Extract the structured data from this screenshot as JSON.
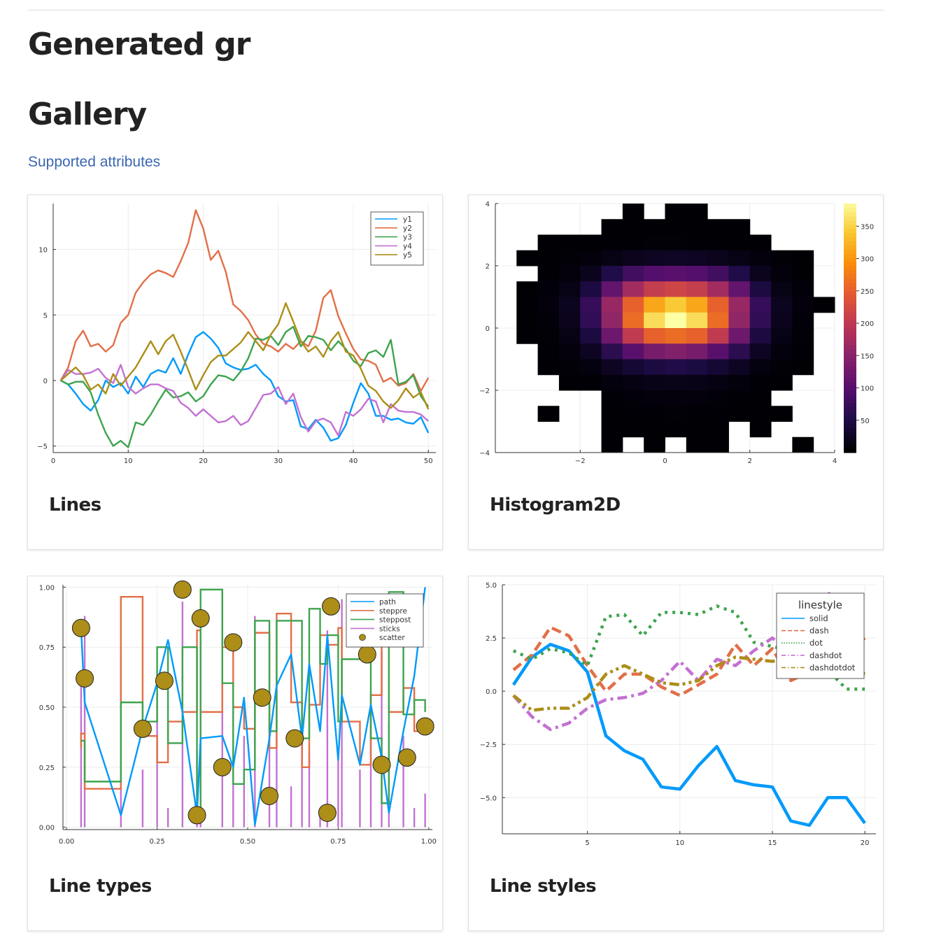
{
  "page": {
    "title": "Generated gr",
    "section_title": "Gallery",
    "link_label": "Supported attributes"
  },
  "cards": [
    {
      "title": "Lines"
    },
    {
      "title": "Histogram2D"
    },
    {
      "title": "Line types"
    },
    {
      "title": "Line styles"
    }
  ],
  "colors": {
    "link": "#3b67b0",
    "series": [
      "#009AFA",
      "#E36F47",
      "#3EA44E",
      "#C371D2",
      "#AC8E18"
    ]
  },
  "chart_data": [
    {
      "type": "line",
      "title": "",
      "xlim": [
        0,
        51
      ],
      "ylim": [
        -5.5,
        13.5
      ],
      "xticks": [
        0,
        10,
        20,
        30,
        40,
        50
      ],
      "yticks": [
        -5,
        0,
        5,
        10
      ],
      "xlabel": "",
      "ylabel": "",
      "grid": true,
      "legend": "top-right",
      "x": [
        1,
        2,
        3,
        4,
        5,
        6,
        7,
        8,
        9,
        10,
        11,
        12,
        13,
        14,
        15,
        16,
        17,
        18,
        19,
        20,
        21,
        22,
        23,
        24,
        25,
        26,
        27,
        28,
        29,
        30,
        31,
        32,
        33,
        34,
        35,
        36,
        37,
        38,
        39,
        40,
        41,
        42,
        43,
        44,
        45,
        46,
        47,
        48,
        49,
        50
      ],
      "series": [
        {
          "name": "y1",
          "values": [
            0,
            -0.3,
            -1,
            -1.8,
            -2.3,
            -1.5,
            0,
            -0.5,
            -0.2,
            -1.0,
            0.3,
            -0.5,
            0.5,
            0.8,
            0.6,
            1.7,
            0.5,
            2.0,
            3.3,
            3.7,
            3.2,
            2.5,
            1.3,
            1.0,
            0.8,
            0.9,
            1.2,
            0.5,
            0,
            -1.2,
            -1.6,
            -1.5,
            -3.5,
            -3.7,
            -3.0,
            -3.6,
            -4.6,
            -4.4,
            -3.4,
            -1.7,
            -0.2,
            -1.0,
            -2.7,
            -2.7,
            -3.0,
            -2.9,
            -3.2,
            -3.3,
            -2.8,
            -4.0
          ]
        },
        {
          "name": "y2",
          "values": [
            0,
            1,
            3,
            3.8,
            2.6,
            2.8,
            2.2,
            2.7,
            4.4,
            5.0,
            6.7,
            7.5,
            8.1,
            8.4,
            8.2,
            7.9,
            9.1,
            10.5,
            13.0,
            11.6,
            9.2,
            9.9,
            8.3,
            5.8,
            5.3,
            4.6,
            3.5,
            2.8,
            2.6,
            2.2,
            2.8,
            2.4,
            3.0,
            2.6,
            3.8,
            6.3,
            6.9,
            4.9,
            3.6,
            2.4,
            1.6,
            1.5,
            1.2,
            -0.1,
            0.2,
            -0.4,
            -0.2,
            0.5,
            -0.8,
            0.2
          ]
        },
        {
          "name": "y3",
          "values": [
            0,
            -0.3,
            -0.1,
            -0.1,
            -0.9,
            -2.6,
            -4.0,
            -5.0,
            -4.6,
            -5.1,
            -3.2,
            -3.4,
            -2.6,
            -1.6,
            -0.7,
            -1.3,
            -1.2,
            -0.9,
            -1.6,
            -1.2,
            -0.3,
            0.4,
            0.3,
            0,
            0.7,
            1.7,
            3.2,
            3.1,
            3.4,
            2.7,
            3.7,
            4.1,
            2.6,
            3.4,
            3.3,
            3.1,
            2.3,
            3.0,
            2.4,
            1.5,
            1.1,
            2.1,
            2.3,
            1.8,
            3.1,
            -0.3,
            -0.1,
            0.4,
            -1.2,
            -2.0
          ]
        },
        {
          "name": "y4",
          "values": [
            0,
            0.8,
            0.5,
            0.5,
            0.6,
            0.9,
            0.2,
            -0.2,
            1.2,
            -0.5,
            -1.0,
            -0.6,
            -0.3,
            -0.3,
            -0.6,
            -0.8,
            -1.7,
            -2.1,
            -2.7,
            -2.2,
            -2.7,
            -3.2,
            -3.1,
            -2.7,
            -3.4,
            -3.1,
            -2.1,
            -1.1,
            -1.0,
            -0.5,
            -1.8,
            -1.0,
            -2.8,
            -3.9,
            -3.1,
            -2.9,
            -3.2,
            -4.2,
            -2.4,
            -2.7,
            -2.2,
            -1.4,
            -1.6,
            -3.2,
            -1.8,
            -2.3,
            -2.4,
            -2.4,
            -2.6,
            -3.1
          ]
        },
        {
          "name": "y5",
          "values": [
            0,
            0.5,
            1.0,
            0.4,
            -0.7,
            -0.3,
            -1.0,
            0.5,
            -0.4,
            0.3,
            1.0,
            2.0,
            3.0,
            2.0,
            3.0,
            3.5,
            2.2,
            0.8,
            -0.7,
            0.4,
            1.4,
            1.9,
            1.9,
            2.4,
            2.9,
            3.7,
            3.0,
            2.3,
            3.5,
            4.3,
            5.9,
            4.5,
            3.0,
            2.2,
            2.6,
            1.8,
            3.0,
            3.7,
            2.2,
            1.9,
            0.9,
            -0.4,
            -0.8,
            -1.6,
            -2.1,
            -1.5,
            -0.6,
            -1.3,
            -0.9,
            -2.2
          ]
        }
      ]
    },
    {
      "type": "heatmap",
      "title": "",
      "xlim": [
        -4,
        4
      ],
      "ylim": [
        -4,
        4
      ],
      "xticks": [
        -2,
        0,
        2,
        4
      ],
      "yticks": [
        -4,
        -2,
        0,
        2,
        4
      ],
      "xlabel": "",
      "ylabel": "",
      "colorbar_ticks": [
        50,
        100,
        150,
        200,
        250,
        300,
        350
      ],
      "colorbar_range": [
        0,
        385
      ],
      "colormap": "inferno",
      "bin_x_edges": [
        -3.5,
        -3.0,
        -2.5,
        -2.0,
        -1.5,
        -1.0,
        -0.5,
        0,
        0.5,
        1.0,
        1.5,
        2.0,
        2.5,
        3.0,
        3.5,
        4.0
      ],
      "bin_y_edges": [
        4.0,
        3.5,
        3.0,
        2.5,
        2.0,
        1.5,
        1.0,
        0.5,
        0,
        -0.5,
        -1.0,
        -1.5,
        -2.0,
        -2.5,
        -3.0,
        -3.5,
        -4.0
      ],
      "counts": [
        [
          0,
          0,
          0,
          0,
          0,
          1,
          0,
          1,
          1,
          0,
          0,
          0,
          0,
          0,
          0
        ],
        [
          0,
          0,
          0,
          0,
          1,
          1,
          1,
          1,
          1,
          1,
          1,
          0,
          0,
          0,
          0
        ],
        [
          0,
          1,
          1,
          1,
          2,
          2,
          3,
          3,
          2,
          2,
          1,
          1,
          0,
          0,
          0
        ],
        [
          1,
          1,
          3,
          6,
          12,
          18,
          22,
          24,
          22,
          18,
          12,
          6,
          3,
          1,
          0
        ],
        [
          0,
          1,
          6,
          18,
          50,
          80,
          95,
          100,
          95,
          80,
          50,
          18,
          6,
          1,
          0
        ],
        [
          1,
          4,
          12,
          45,
          110,
          170,
          205,
          215,
          205,
          170,
          110,
          45,
          12,
          4,
          0
        ],
        [
          1,
          6,
          20,
          70,
          160,
          250,
          310,
          340,
          310,
          250,
          160,
          70,
          20,
          6,
          1
        ],
        [
          1,
          4,
          18,
          65,
          155,
          260,
          355,
          385,
          355,
          260,
          155,
          65,
          18,
          4,
          0
        ],
        [
          1,
          3,
          12,
          45,
          120,
          200,
          250,
          260,
          250,
          200,
          120,
          45,
          12,
          3,
          0
        ],
        [
          0,
          2,
          6,
          22,
          60,
          100,
          130,
          140,
          130,
          100,
          60,
          22,
          6,
          2,
          0
        ],
        [
          0,
          1,
          3,
          8,
          22,
          35,
          45,
          50,
          45,
          35,
          22,
          8,
          3,
          1,
          0
        ],
        [
          0,
          0,
          1,
          2,
          5,
          10,
          14,
          15,
          14,
          10,
          5,
          2,
          1,
          0,
          0
        ],
        [
          0,
          0,
          0,
          0,
          2,
          4,
          6,
          6,
          6,
          4,
          2,
          1,
          0,
          0,
          0
        ],
        [
          0,
          1,
          0,
          0,
          1,
          2,
          2,
          3,
          2,
          2,
          1,
          1,
          1,
          0,
          0
        ],
        [
          0,
          0,
          0,
          0,
          1,
          1,
          1,
          1,
          1,
          1,
          0,
          1,
          0,
          0,
          0
        ],
        [
          0,
          0,
          0,
          0,
          1,
          0,
          1,
          0,
          1,
          1,
          0,
          0,
          0,
          1,
          0
        ]
      ]
    },
    {
      "type": "line",
      "title": "",
      "xlim": [
        -0.01,
        1.01
      ],
      "ylim": [
        -0.01,
        1.01
      ],
      "xticks": [
        "0.00",
        "0.25",
        "0.50",
        "0.75",
        "1.00"
      ],
      "yticks": [
        "0.00",
        "0.25",
        "0.50",
        "0.75",
        "1.00"
      ],
      "xlabel": "",
      "ylabel": "",
      "grid": true,
      "legend": "top-right",
      "series_names": [
        "path",
        "steppre",
        "steppost",
        "sticks",
        "scatter"
      ],
      "x": [
        0.04,
        0.05,
        0.15,
        0.21,
        0.25,
        0.28,
        0.32,
        0.36,
        0.37,
        0.43,
        0.46,
        0.49,
        0.52,
        0.56,
        0.58,
        0.62,
        0.65,
        0.67,
        0.7,
        0.72,
        0.75,
        0.76,
        0.81,
        0.84,
        0.87,
        0.89,
        0.93,
        0.96,
        0.99
      ],
      "series": [
        {
          "name": "path",
          "values": [
            0.83,
            0.52,
            0.05,
            0.41,
            0.6,
            0.78,
            0.48,
            0.05,
            0.37,
            0.38,
            0.25,
            0.54,
            0.01,
            0.37,
            0.59,
            0.72,
            0.37,
            0.68,
            0.4,
            0.8,
            0.28,
            0.55,
            0.26,
            0.51,
            0.29,
            0.06,
            0.4,
            0.63,
            1.0
          ]
        },
        {
          "name": "steppre",
          "values": [
            0.33,
            0.39,
            0.16,
            0.96,
            0.38,
            0.27,
            0.44,
            0.48,
            0.82,
            0.48,
            0.75,
            0.5,
            0.41,
            0.81,
            0.33,
            0.89,
            0.52,
            0.25,
            0.51,
            0.8,
            0.76,
            0.83,
            0.44,
            0.26,
            0.55,
            0.85,
            0.48,
            0.58,
            0.4
          ]
        },
        {
          "name": "steppost",
          "values": [
            0.36,
            0.19,
            0.52,
            0.44,
            0.75,
            0.35,
            0.75,
            0.04,
            0.99,
            0.6,
            0.18,
            0.24,
            0.86,
            0.4,
            0.86,
            0.86,
            0.37,
            0.91,
            0.68,
            0.8,
            0.44,
            0.7,
            0.72,
            0.37,
            0.1,
            0.98,
            0.47,
            0.53,
            0.48
          ]
        },
        {
          "name": "sticks",
          "values": [
            0.6,
            0.88,
            0.72,
            0.24,
            0.56,
            0.08,
            0.94,
            0.32,
            0.77,
            0.97,
            0.48,
            0.38,
            0.88,
            0.47,
            0.6,
            0.17,
            0.52,
            0.31,
            0.07,
            0.82,
            0.33,
            0.95,
            0.24,
            0.56,
            0.73,
            0.43,
            0.38,
            0.08,
            0.14
          ]
        },
        {
          "name": "scatter",
          "x": [
            0.04,
            0.05,
            0.21,
            0.27,
            0.32,
            0.36,
            0.37,
            0.43,
            0.46,
            0.54,
            0.56,
            0.63,
            0.72,
            0.73,
            0.83,
            0.87,
            0.94,
            0.99
          ],
          "values": [
            0.83,
            0.62,
            0.41,
            0.61,
            0.99,
            0.05,
            0.87,
            0.25,
            0.77,
            0.54,
            0.13,
            0.37,
            0.06,
            0.92,
            0.72,
            0.26,
            0.29,
            0.42
          ]
        }
      ]
    },
    {
      "type": "line",
      "title": "",
      "xlim": [
        0.4,
        20.6
      ],
      "ylim": [
        -6.7,
        5.0
      ],
      "xticks": [
        5,
        10,
        15,
        20
      ],
      "yticks": [
        "−5.0",
        "−2.5",
        "0.0",
        "2.5",
        "5.0"
      ],
      "ytick_values": [
        -5,
        -2.5,
        0,
        2.5,
        5
      ],
      "xlabel": "",
      "ylabel": "",
      "grid": true,
      "legend": "top-right",
      "legend_title": "linestyle",
      "x": [
        1,
        2,
        3,
        4,
        5,
        6,
        7,
        8,
        9,
        10,
        11,
        12,
        13,
        14,
        15,
        16,
        17,
        18,
        19,
        20
      ],
      "series": [
        {
          "name": "solid",
          "style": "solid",
          "values": [
            0.3,
            1.6,
            2.2,
            1.9,
            0.9,
            -2.1,
            -2.8,
            -3.2,
            -4.5,
            -4.6,
            -3.5,
            -2.6,
            -4.2,
            -4.4,
            -4.5,
            -6.1,
            -6.3,
            -5.0,
            -5.0,
            -6.2
          ]
        },
        {
          "name": "dash",
          "style": "dash",
          "values": [
            1.0,
            1.7,
            3.0,
            2.6,
            1.2,
            0.0,
            0.8,
            0.8,
            0.2,
            -0.2,
            0.3,
            0.8,
            2.2,
            1.2,
            2.0,
            0.5,
            0.9,
            1.7,
            1.8,
            2.5
          ]
        },
        {
          "name": "dot",
          "style": "dot",
          "values": [
            1.9,
            1.5,
            2.0,
            1.8,
            1.2,
            3.5,
            3.6,
            2.6,
            3.7,
            3.7,
            3.6,
            4.0,
            3.7,
            2.3,
            2.1,
            1.9,
            1.4,
            1.0,
            0.1,
            0.1
          ]
        },
        {
          "name": "dashdot",
          "style": "dashdot",
          "values": [
            -0.2,
            -1.2,
            -1.8,
            -1.5,
            -0.8,
            -0.4,
            -0.3,
            -0.1,
            0.5,
            1.4,
            0.5,
            1.5,
            1.2,
            1.9,
            2.5,
            1.8,
            2.7,
            4.7,
            2.9,
            2.4
          ]
        },
        {
          "name": "dashdotdot",
          "style": "dashdotdot",
          "values": [
            -0.2,
            -0.9,
            -0.8,
            -0.8,
            -0.3,
            0.8,
            1.2,
            0.8,
            0.4,
            0.3,
            0.5,
            1.2,
            1.6,
            1.5,
            1.4,
            1.6,
            1.4,
            1.0,
            1.2,
            0.8
          ]
        }
      ]
    }
  ]
}
